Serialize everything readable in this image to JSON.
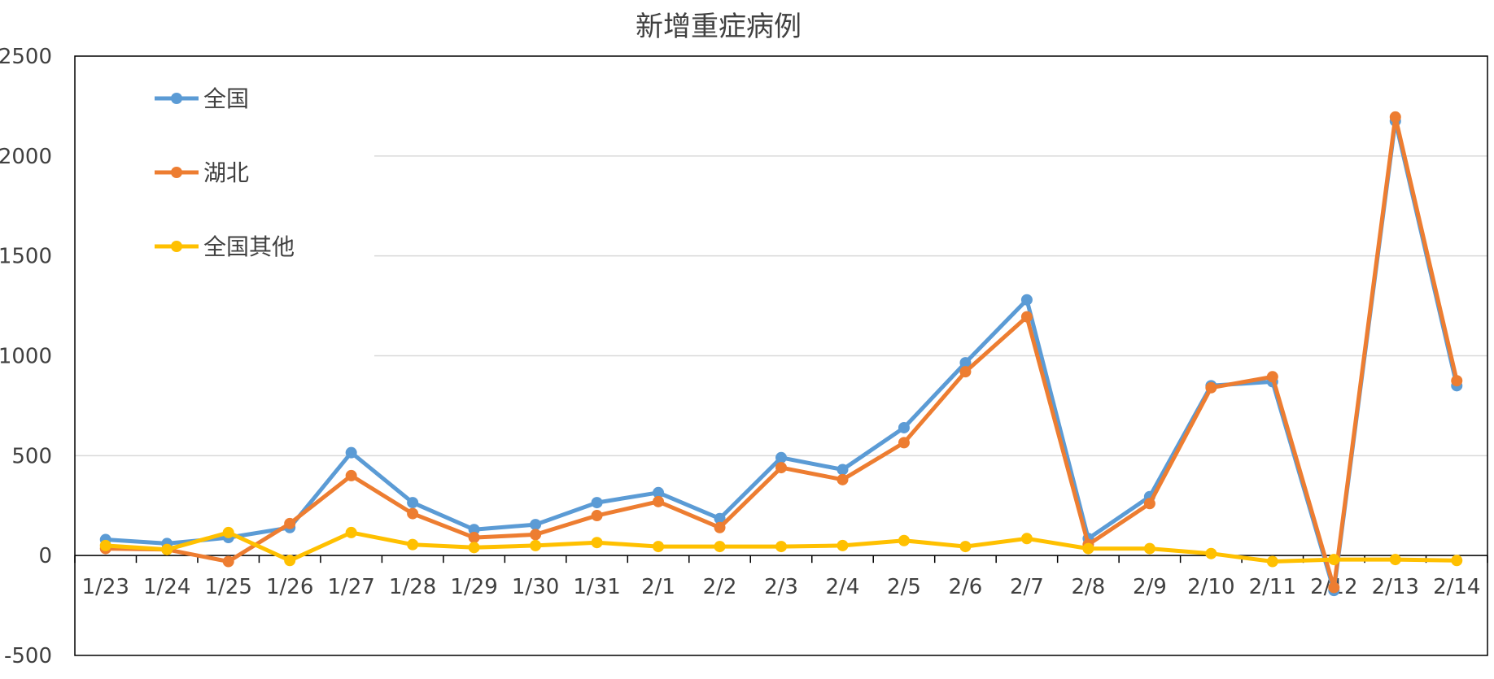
{
  "chart_data": {
    "type": "line",
    "title": "新增重症病例",
    "xlabel": "",
    "ylabel": "",
    "ylim": [
      -500,
      2500
    ],
    "yticks": [
      -500,
      0,
      500,
      1000,
      1500,
      2000,
      2500
    ],
    "grid": true,
    "legend_position": "top-left",
    "categories": [
      "1/23",
      "1/24",
      "1/25",
      "1/26",
      "1/27",
      "1/28",
      "1/29",
      "1/30",
      "1/31",
      "2/1",
      "2/2",
      "2/3",
      "2/4",
      "2/5",
      "2/6",
      "2/7",
      "2/8",
      "2/9",
      "2/10",
      "2/11",
      "2/12",
      "2/13",
      "2/14"
    ],
    "series": [
      {
        "name": "全国",
        "color": "#5B9BD5",
        "values": [
          80,
          60,
          90,
          140,
          515,
          265,
          130,
          155,
          265,
          315,
          185,
          490,
          430,
          640,
          965,
          1280,
          85,
          295,
          850,
          870,
          -175,
          2175,
          850
        ]
      },
      {
        "name": "湖北",
        "color": "#ED7D31",
        "values": [
          35,
          30,
          -30,
          160,
          400,
          210,
          90,
          105,
          200,
          270,
          140,
          440,
          380,
          565,
          920,
          1195,
          55,
          260,
          840,
          895,
          -160,
          2195,
          875
        ]
      },
      {
        "name": "全国其他",
        "color": "#FFC000",
        "values": [
          50,
          30,
          115,
          -25,
          115,
          55,
          40,
          50,
          65,
          45,
          45,
          45,
          50,
          75,
          45,
          85,
          35,
          35,
          10,
          -30,
          -20,
          -20,
          -25
        ]
      }
    ]
  }
}
